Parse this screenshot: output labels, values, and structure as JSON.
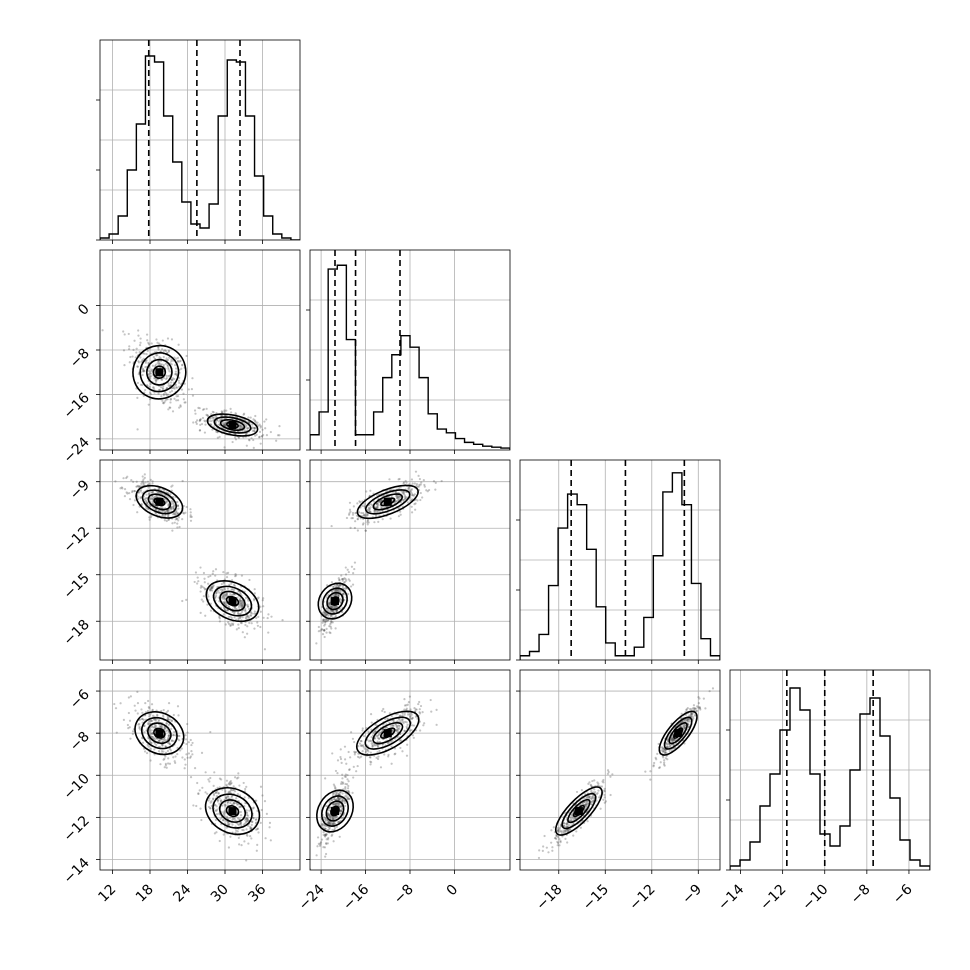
{
  "chart_data": {
    "type": "corner",
    "parameters": [
      {
        "range": [
          10,
          42
        ],
        "ticks": [
          "12",
          "18",
          "24",
          "30",
          "36"
        ],
        "tick_values": [
          12,
          18,
          24,
          30,
          36
        ],
        "quantiles": [
          17.8,
          25.5,
          32.4
        ],
        "hist_edges": [
          10,
          42
        ],
        "hist_counts": [
          0.01,
          0.03,
          0.12,
          0.35,
          0.58,
          0.92,
          0.89,
          0.62,
          0.39,
          0.19,
          0.08,
          0.06,
          0.18,
          0.62,
          0.9,
          0.89,
          0.62,
          0.32,
          0.12,
          0.03,
          0.01,
          0.0
        ],
        "hist_ylim": [
          0,
          1.0
        ]
      },
      {
        "range": [
          -26,
          10
        ],
        "ticks": [
          "0",
          "-8",
          "-16",
          "-24"
        ],
        "tick_values": [
          0,
          -8,
          -16,
          -24
        ],
        "quantiles": [
          -21.5,
          -17.8,
          -9.8
        ],
        "hist_edges": [
          -26,
          10
        ],
        "hist_counts": [
          0.08,
          0.2,
          0.95,
          0.97,
          0.58,
          0.08,
          0.08,
          0.2,
          0.38,
          0.5,
          0.6,
          0.54,
          0.38,
          0.19,
          0.11,
          0.09,
          0.06,
          0.04,
          0.03,
          0.02,
          0.015,
          0.01
        ],
        "hist_ylim": [
          0,
          1.05
        ]
      },
      {
        "range": [
          -20.5,
          -7.6
        ],
        "ticks": [
          "-9",
          "-12",
          "-15",
          "-18"
        ],
        "tick_values": [
          -9,
          -12,
          -15,
          -18
        ],
        "tick_labels_x": [
          "-18",
          "-15",
          "-12",
          "-9"
        ],
        "tick_values_x": [
          -18,
          -15,
          -12,
          -9
        ],
        "quantiles": [
          -17.2,
          -13.7,
          -9.9
        ],
        "hist_edges": [
          -20.5,
          -7.6
        ],
        "hist_counts": [
          0.02,
          0.04,
          0.12,
          0.35,
          0.62,
          0.78,
          0.73,
          0.52,
          0.25,
          0.08,
          0.02,
          0.02,
          0.06,
          0.2,
          0.49,
          0.79,
          0.88,
          0.73,
          0.36,
          0.1,
          0.02
        ],
        "hist_ylim": [
          0,
          0.94
        ]
      },
      {
        "range": [
          -14.5,
          -5.0
        ],
        "ticks": [
          "-6",
          "-8",
          "-10",
          "-12",
          "-14"
        ],
        "tick_values": [
          -6,
          -8,
          -10,
          -12,
          -14
        ],
        "tick_labels_x": [
          "-14",
          "-12",
          "-10",
          "-8",
          "-6"
        ],
        "tick_values_x": [
          -14,
          -12,
          -10,
          -8,
          -6
        ],
        "quantiles": [
          -11.8,
          -10.0,
          -7.7
        ],
        "hist_edges": [
          -14.5,
          -5.0
        ],
        "hist_counts": [
          0.02,
          0.05,
          0.14,
          0.32,
          0.48,
          0.7,
          0.91,
          0.8,
          0.48,
          0.18,
          0.12,
          0.22,
          0.5,
          0.78,
          0.86,
          0.67,
          0.36,
          0.15,
          0.05,
          0.02
        ],
        "hist_ylim": [
          0,
          1.0
        ]
      }
    ],
    "modes": [
      [
        19.5,
        -12.0,
        -10.3,
        -8.0
      ],
      [
        31.2,
        -21.5,
        -16.7,
        -11.7
      ]
    ],
    "mode_spread": [
      [
        1.8,
        2.7,
        0.55,
        0.55
      ],
      [
        2.0,
        1.0,
        0.7,
        0.6
      ]
    ],
    "correlations": [
      [
        1.0,
        -0.45,
        -0.55,
        -0.5
      ],
      [
        -0.45,
        1.0,
        0.7,
        0.75
      ],
      [
        -0.55,
        0.7,
        1.0,
        0.9
      ],
      [
        -0.5,
        0.75,
        0.9,
        1.0
      ]
    ],
    "grid": true,
    "colors": {
      "points": "#555555",
      "density": "#000000",
      "lines": "#000000"
    }
  }
}
